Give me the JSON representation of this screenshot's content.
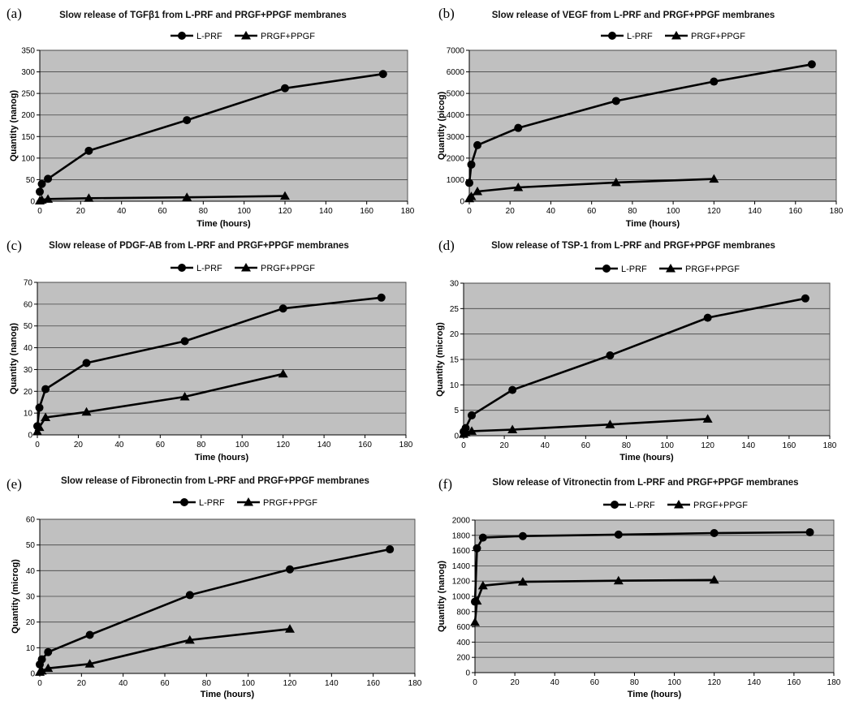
{
  "chart_data": [
    {
      "panel": "(a)",
      "type": "line",
      "title": "Slow release of TGFβ1 from L-PRF and PRGF+PPGF membranes",
      "xlabel": "Time (hours)",
      "ylabel": "Quantity (nanog)",
      "xlim": [
        0,
        180
      ],
      "xticks": [
        0,
        20,
        40,
        60,
        80,
        100,
        120,
        140,
        160,
        180
      ],
      "ylim": [
        0,
        350
      ],
      "yticks": [
        0,
        50,
        100,
        150,
        200,
        250,
        300,
        350
      ],
      "grid": true,
      "legend": "top-center",
      "series": [
        {
          "name": "L-PRF",
          "marker": "circle",
          "x": [
            0,
            1,
            4,
            24,
            72,
            120,
            168
          ],
          "y": [
            22,
            40,
            52,
            117,
            188,
            262,
            295
          ]
        },
        {
          "name": "PRGF+PPGF",
          "marker": "triangle",
          "x": [
            0,
            1,
            4,
            24,
            72,
            120
          ],
          "y": [
            1,
            3,
            5,
            7,
            9,
            12
          ]
        }
      ]
    },
    {
      "panel": "(b)",
      "type": "line",
      "title": "Slow release of VEGF from L-PRF and PRGF+PPGF membranes",
      "xlabel": "Time (hours)",
      "ylabel": "Quantity (picog)",
      "xlim": [
        0,
        180
      ],
      "xticks": [
        0,
        20,
        40,
        60,
        80,
        100,
        120,
        140,
        160,
        180
      ],
      "ylim": [
        0,
        7000
      ],
      "yticks": [
        0,
        1000,
        2000,
        3000,
        4000,
        5000,
        6000,
        7000
      ],
      "grid": true,
      "legend": "top-center",
      "series": [
        {
          "name": "L-PRF",
          "marker": "circle",
          "x": [
            0,
            1,
            4,
            24,
            72,
            120,
            168
          ],
          "y": [
            850,
            1700,
            2600,
            3400,
            4650,
            5550,
            6350
          ]
        },
        {
          "name": "PRGF+PPGF",
          "marker": "triangle",
          "x": [
            0,
            1,
            4,
            24,
            72,
            120
          ],
          "y": [
            120,
            220,
            450,
            640,
            870,
            1030
          ]
        }
      ]
    },
    {
      "panel": "(c)",
      "type": "line",
      "title": "Slow release of PDGF-AB from L-PRF and PRGF+PPGF membranes",
      "xlabel": "Time (hours)",
      "ylabel": "Quantity (nanog)",
      "xlim": [
        0,
        180
      ],
      "xticks": [
        0,
        20,
        40,
        60,
        80,
        100,
        120,
        140,
        160,
        180
      ],
      "ylim": [
        0,
        70
      ],
      "yticks": [
        0,
        10,
        20,
        30,
        40,
        50,
        60,
        70
      ],
      "grid": true,
      "legend": "top-center",
      "series": [
        {
          "name": "L-PRF",
          "marker": "circle",
          "x": [
            0,
            1,
            4,
            24,
            72,
            120,
            168
          ],
          "y": [
            4,
            12.5,
            21,
            33,
            43,
            58,
            63
          ]
        },
        {
          "name": "PRGF+PPGF",
          "marker": "triangle",
          "x": [
            0,
            1,
            4,
            24,
            72,
            120
          ],
          "y": [
            1.5,
            3.5,
            8,
            10.5,
            17.5,
            28
          ]
        }
      ]
    },
    {
      "panel": "(d)",
      "type": "line",
      "title": "Slow release of TSP-1 from L-PRF and PRGF+PPGF membranes",
      "xlabel": "Time (hours)",
      "ylabel": "Quantity (microg)",
      "xlim": [
        0,
        180
      ],
      "xticks": [
        0,
        20,
        40,
        60,
        80,
        100,
        120,
        140,
        160,
        180
      ],
      "ylim": [
        0,
        30
      ],
      "yticks": [
        0,
        5,
        10,
        15,
        20,
        25,
        30
      ],
      "grid": true,
      "legend": "top-center",
      "series": [
        {
          "name": "L-PRF",
          "marker": "circle",
          "x": [
            0,
            1,
            4,
            24,
            72,
            120,
            168
          ],
          "y": [
            0.8,
            1.5,
            4,
            9,
            15.8,
            23.2,
            27
          ]
        },
        {
          "name": "PRGF+PPGF",
          "marker": "triangle",
          "x": [
            0,
            1,
            4,
            24,
            72,
            120
          ],
          "y": [
            0.3,
            0.6,
            0.9,
            1.2,
            2.2,
            3.3
          ]
        }
      ]
    },
    {
      "panel": "(e)",
      "type": "line",
      "title": "Slow release of Fibronectin from L-PRF and PRGF+PPGF membranes",
      "xlabel": "Time (hours)",
      "ylabel": "Quantity (microg)",
      "xlim": [
        0,
        180
      ],
      "xticks": [
        0,
        20,
        40,
        60,
        80,
        100,
        120,
        140,
        160,
        180
      ],
      "ylim": [
        0,
        60
      ],
      "yticks": [
        0,
        10,
        20,
        30,
        40,
        50,
        60
      ],
      "grid": true,
      "legend": "top-center",
      "series": [
        {
          "name": "L-PRF",
          "marker": "circle",
          "x": [
            0,
            1,
            4,
            24,
            72,
            120,
            168
          ],
          "y": [
            3.5,
            5.5,
            8.3,
            15,
            30.5,
            40.5,
            48.3
          ]
        },
        {
          "name": "PRGF+PPGF",
          "marker": "triangle",
          "x": [
            0,
            1,
            4,
            24,
            72,
            120
          ],
          "y": [
            0.5,
            1,
            2,
            3.7,
            13,
            17.3
          ]
        }
      ]
    },
    {
      "panel": "(f)",
      "type": "line",
      "title": "Slow release of Vitronectin from L-PRF and PRGF+PPGF membranes",
      "xlabel": "Time (hours)",
      "ylabel": "Quantity (nanog)",
      "xlim": [
        0,
        180
      ],
      "xticks": [
        0,
        20,
        40,
        60,
        80,
        100,
        120,
        140,
        160,
        180
      ],
      "ylim": [
        0,
        2000
      ],
      "yticks": [
        0,
        200,
        400,
        600,
        800,
        1000,
        1200,
        1400,
        1600,
        1800,
        2000
      ],
      "grid": true,
      "legend": "top-center",
      "series": [
        {
          "name": "L-PRF",
          "marker": "circle",
          "x": [
            0,
            1,
            4,
            24,
            72,
            120,
            168
          ],
          "y": [
            930,
            1630,
            1770,
            1790,
            1810,
            1830,
            1840
          ]
        },
        {
          "name": "PRGF+PPGF",
          "marker": "triangle",
          "x": [
            0,
            1,
            4,
            24,
            72,
            120
          ],
          "y": [
            660,
            940,
            1140,
            1190,
            1205,
            1215
          ]
        }
      ]
    }
  ]
}
